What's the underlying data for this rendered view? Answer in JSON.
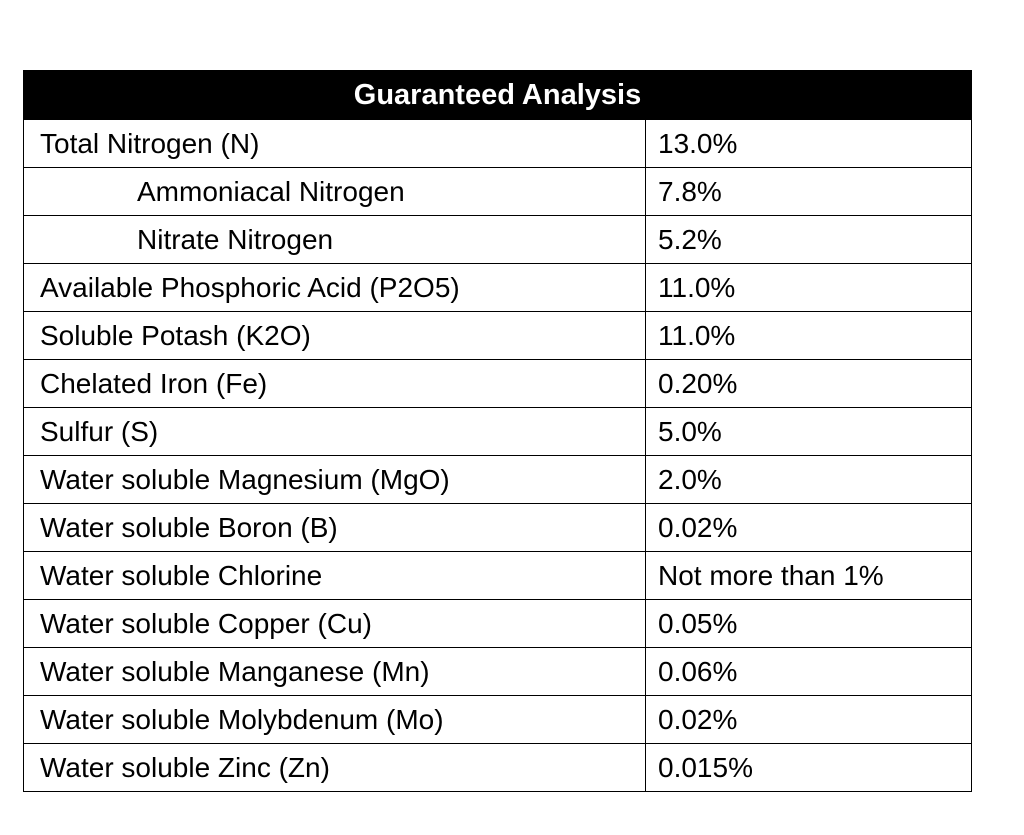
{
  "table": {
    "title": "Guaranteed Analysis",
    "rows": [
      [
        "Total Nitrogen (N)",
        "13.0%"
      ],
      [
        "Ammoniacal Nitrogen",
        "7.8%"
      ],
      [
        "Nitrate Nitrogen",
        "5.2%"
      ],
      [
        "Available Phosphoric Acid (P2O5)",
        "11.0%"
      ],
      [
        "Soluble Potash (K2O)",
        "11.0%"
      ],
      [
        "Chelated Iron (Fe)",
        "0.20%"
      ],
      [
        "Sulfur (S)",
        "5.0%"
      ],
      [
        "Water soluble Magnesium (MgO)",
        "2.0%"
      ],
      [
        "Water soluble Boron (B)",
        "0.02%"
      ],
      [
        "Water soluble Chlorine",
        "Not more than 1%"
      ],
      [
        "Water soluble Copper (Cu)",
        "0.05%"
      ],
      [
        "Water soluble Manganese (Mn)",
        "0.06%"
      ],
      [
        "Water soluble Molybdenum (Mo)",
        "0.02%"
      ],
      [
        "Water soluble Zinc (Zn)",
        "0.015%"
      ]
    ]
  }
}
